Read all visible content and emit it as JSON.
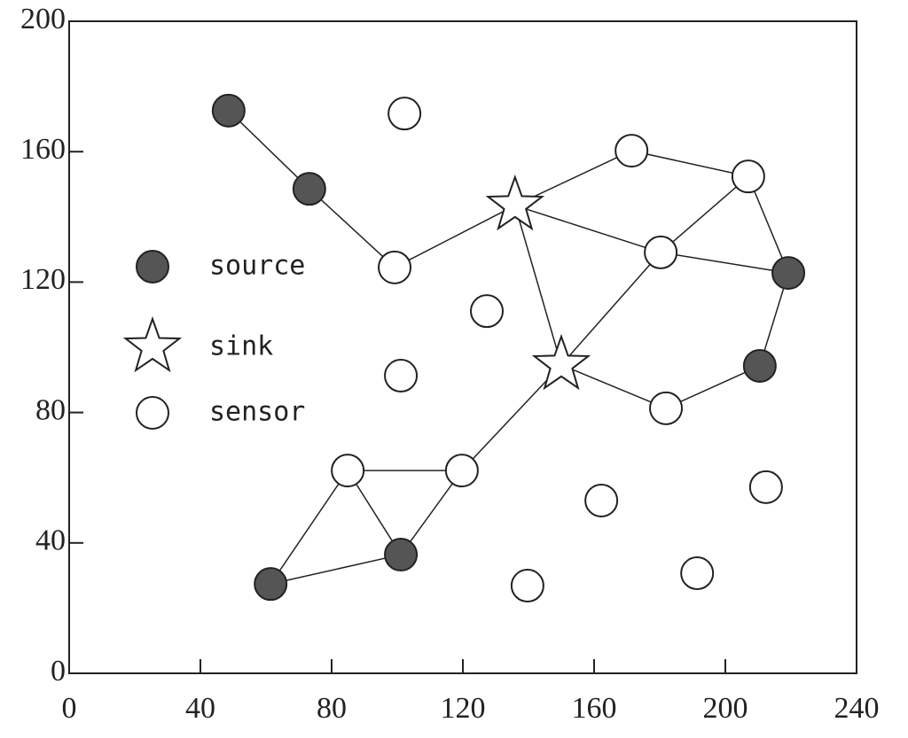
{
  "chart_data": {
    "type": "network",
    "xlim": [
      0,
      240
    ],
    "ylim": [
      0,
      200
    ],
    "xticks": [
      0,
      40,
      80,
      120,
      160,
      200,
      240
    ],
    "yticks": [
      0,
      40,
      80,
      120,
      160,
      200
    ],
    "legend": "center left",
    "series": [
      {
        "name": "source",
        "marker": "circle",
        "color": "#555555",
        "x": [
          48.6,
          73.2,
          219.2,
          210.5,
          61.4,
          101.1
        ],
        "y": [
          172.6,
          148.6,
          122.8,
          94.3,
          27.4,
          36.4
        ]
      },
      {
        "name": "sink",
        "marker": "star",
        "color": "#ffffff",
        "x": [
          135.9,
          150.0
        ],
        "y": [
          143.5,
          94.6
        ]
      },
      {
        "name": "sensor",
        "marker": "circle",
        "color": "#ffffff",
        "x": [
          102.2,
          99.2,
          171.4,
          207.0,
          180.3,
          127.3,
          101.1,
          181.9,
          84.9,
          119.7,
          162.2,
          212.4,
          139.7,
          191.4
        ],
        "y": [
          171.7,
          124.5,
          160.3,
          152.4,
          129.1,
          111.1,
          91.3,
          81.3,
          62.2,
          62.2,
          53.0,
          57.1,
          26.9,
          30.7
        ]
      }
    ],
    "edges": [
      [
        [
          0,
          0
        ],
        [
          0,
          1
        ]
      ],
      [
        [
          0,
          1
        ],
        [
          2,
          1
        ]
      ],
      [
        [
          2,
          1
        ],
        [
          1,
          0
        ]
      ],
      [
        [
          1,
          0
        ],
        [
          2,
          2
        ]
      ],
      [
        [
          2,
          2
        ],
        [
          2,
          3
        ]
      ],
      [
        [
          2,
          3
        ],
        [
          0,
          2
        ]
      ],
      [
        [
          1,
          0
        ],
        [
          2,
          4
        ]
      ],
      [
        [
          2,
          4
        ],
        [
          0,
          2
        ]
      ],
      [
        [
          2,
          4
        ],
        [
          2,
          3
        ]
      ],
      [
        [
          2,
          4
        ],
        [
          1,
          1
        ]
      ],
      [
        [
          1,
          0
        ],
        [
          1,
          1
        ]
      ],
      [
        [
          1,
          1
        ],
        [
          2,
          7
        ]
      ],
      [
        [
          2,
          7
        ],
        [
          0,
          3
        ]
      ],
      [
        [
          0,
          3
        ],
        [
          0,
          2
        ]
      ],
      [
        [
          1,
          1
        ],
        [
          2,
          9
        ]
      ],
      [
        [
          2,
          9
        ],
        [
          2,
          8
        ]
      ],
      [
        [
          2,
          9
        ],
        [
          0,
          5
        ]
      ],
      [
        [
          2,
          8
        ],
        [
          0,
          5
        ]
      ],
      [
        [
          2,
          8
        ],
        [
          0,
          4
        ]
      ],
      [
        [
          0,
          4
        ],
        [
          0,
          5
        ]
      ]
    ]
  }
}
